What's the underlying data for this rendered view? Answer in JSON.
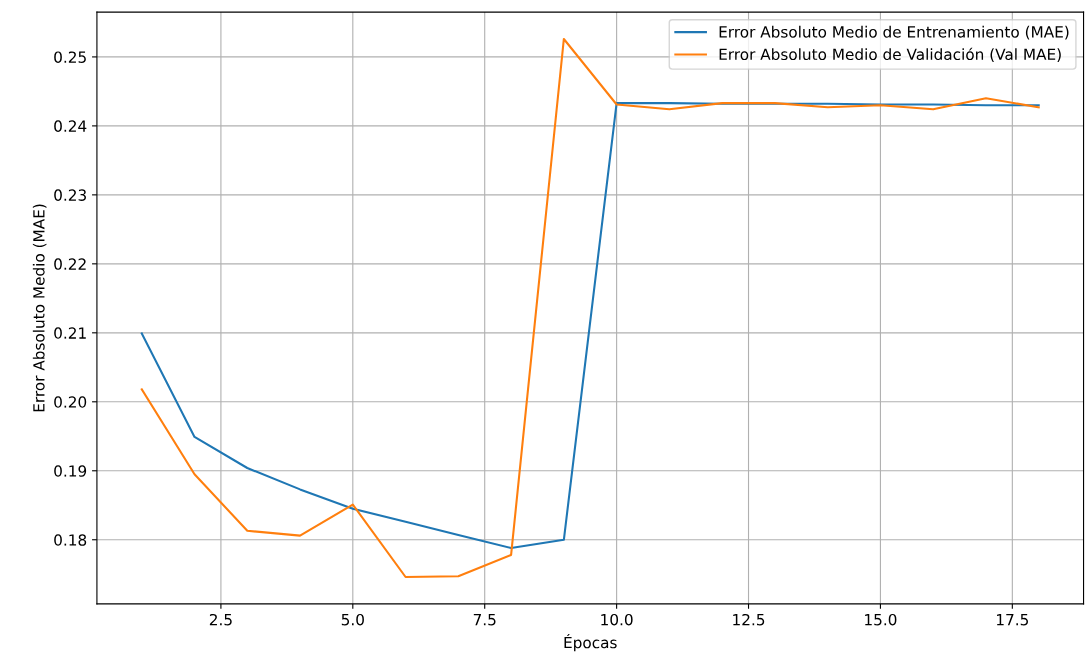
{
  "chart_data": {
    "type": "line",
    "xlabel": "Épocas",
    "ylabel": "Error Absoluto Medio (MAE)",
    "x": [
      1,
      2,
      3,
      4,
      5,
      6,
      7,
      8,
      9,
      10,
      11,
      12,
      13,
      14,
      15,
      16,
      17,
      18
    ],
    "series": [
      {
        "name": "Error Absoluto Medio de Entrenamiento (MAE)",
        "color": "#1f77b4",
        "values": [
          0.2099,
          0.1949,
          0.1904,
          0.1873,
          0.1845,
          0.1826,
          0.1807,
          0.1788,
          0.18,
          0.2433,
          0.2433,
          0.2432,
          0.2432,
          0.2432,
          0.2431,
          0.2431,
          0.243,
          0.243
        ]
      },
      {
        "name": "Error Absoluto Medio de Validación (Val MAE)",
        "color": "#ff7f0e",
        "values": [
          0.2018,
          0.1895,
          0.1813,
          0.1806,
          0.1851,
          0.1746,
          0.1747,
          0.1778,
          0.2526,
          0.2431,
          0.2424,
          0.2433,
          0.2433,
          0.2427,
          0.243,
          0.2424,
          0.244,
          0.2427
        ]
      }
    ],
    "xlim": [
      0.15,
      18.85
    ],
    "ylim": [
      0.1707,
      0.2565
    ],
    "xticks": [
      {
        "value": 2.5,
        "label": "2.5"
      },
      {
        "value": 5,
        "label": "5.0"
      },
      {
        "value": 7.5,
        "label": "7.5"
      },
      {
        "value": 10,
        "label": "10.0"
      },
      {
        "value": 12.5,
        "label": "12.5"
      },
      {
        "value": 15,
        "label": "15.0"
      },
      {
        "value": 17.5,
        "label": "17.5"
      }
    ],
    "yticks": [
      0.18,
      0.19,
      {
        "value": 0.2,
        "label": "0.20"
      },
      0.21,
      0.22,
      0.23,
      0.24,
      0.25
    ],
    "grid": true,
    "legend": "top right"
  }
}
